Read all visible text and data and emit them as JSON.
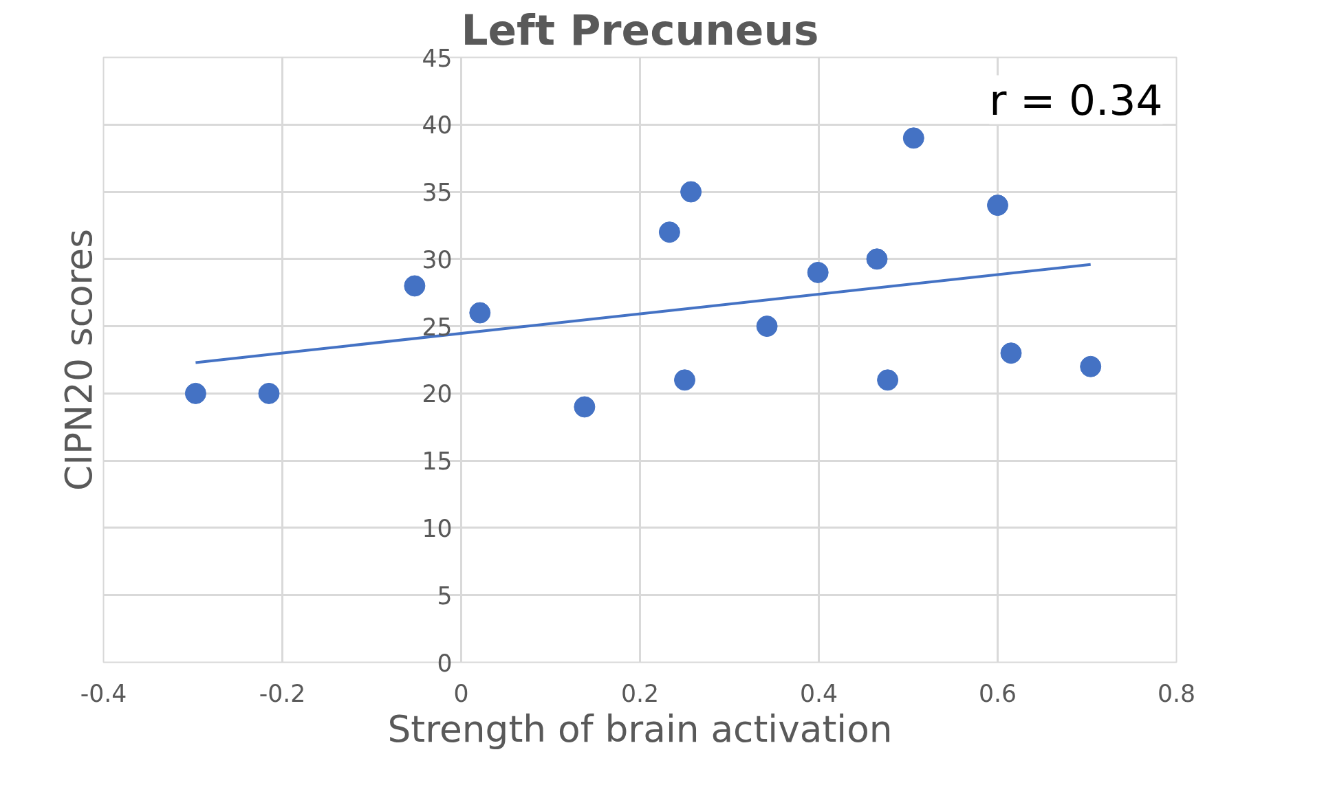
{
  "chart_data": {
    "type": "scatter",
    "title": "Left Precuneus",
    "xlabel": "Strength of brain activation",
    "ylabel": "CIPN20 scores",
    "annotations": [
      "r = 0.34"
    ],
    "series": [
      {
        "color": "#4472c4",
        "x": [
          -0.297,
          -0.215,
          -0.052,
          0.021,
          0.138,
          0.233,
          0.257,
          0.25,
          0.342,
          0.399,
          0.465,
          0.477,
          0.506,
          0.6,
          0.615,
          0.704
        ],
        "values": [
          20,
          20,
          28,
          26,
          19,
          32,
          35,
          21,
          25,
          29,
          30,
          21,
          39,
          34,
          23,
          22
        ]
      },
      {
        "type": "line",
        "marker": "none",
        "color": "#4472c4",
        "x": [
          -0.297,
          0.704
        ],
        "values": [
          22.3,
          29.6
        ]
      }
    ],
    "xlim": [
      -0.4,
      0.8
    ],
    "xticks": [
      -0.4,
      -0.2,
      0,
      0.2,
      0.4,
      0.6,
      0.8
    ],
    "ylim": [
      0,
      45
    ],
    "yticks": [
      0,
      5,
      10,
      15,
      20,
      25,
      30,
      35,
      40,
      45
    ],
    "grid": true,
    "marker": "circle"
  }
}
